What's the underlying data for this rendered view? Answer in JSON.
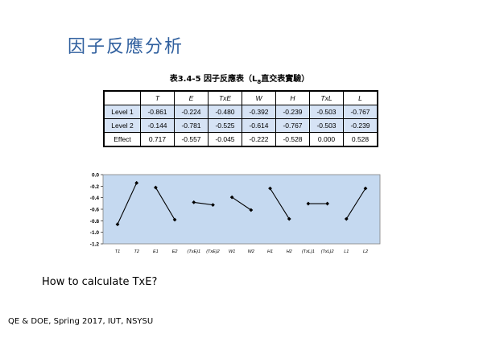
{
  "slide": {
    "title": "因子反應分析",
    "question": "How to calculate TxE?",
    "footer": "QE & DOE, Spring 2017, IUT, NSYSU"
  },
  "table": {
    "caption_pre": "表3.4-5  因子反應表（L",
    "caption_sub": "8",
    "caption_post": "直交表實驗）",
    "headers": [
      "T",
      "E",
      "TxE",
      "W",
      "H",
      "TxL",
      "L"
    ],
    "rows": [
      {
        "label": "Level 1",
        "values": [
          "-0.861",
          "-0.224",
          "-0.480",
          "-0.392",
          "-0.239",
          "-0.503",
          "-0.767"
        ]
      },
      {
        "label": "Level 2",
        "values": [
          "-0.144",
          "-0.781",
          "-0.525",
          "-0.614",
          "-0.767",
          "-0.503",
          "-0.239"
        ]
      },
      {
        "label": "Effect",
        "values": [
          "0.717",
          "-0.557",
          "-0.045",
          "-0.222",
          "-0.528",
          "0.000",
          "0.528"
        ]
      }
    ]
  },
  "chart_data": {
    "type": "line",
    "categories": [
      "T1",
      "T2",
      "E1",
      "E2",
      "(TxE)1",
      "(TxE)2",
      "W1",
      "W2",
      "H1",
      "H2",
      "(TxL)1",
      "(TxL)2",
      "L1",
      "L2"
    ],
    "series": [
      {
        "values": [
          -0.861,
          -0.144,
          null,
          null,
          null,
          null,
          null,
          null,
          null,
          null,
          null,
          null,
          null,
          null
        ]
      },
      {
        "values": [
          null,
          null,
          -0.224,
          -0.781,
          null,
          null,
          null,
          null,
          null,
          null,
          null,
          null,
          null,
          null
        ]
      },
      {
        "values": [
          null,
          null,
          null,
          null,
          -0.48,
          -0.525,
          null,
          null,
          null,
          null,
          null,
          null,
          null,
          null
        ]
      },
      {
        "values": [
          null,
          null,
          null,
          null,
          null,
          null,
          -0.392,
          -0.614,
          null,
          null,
          null,
          null,
          null,
          null
        ]
      },
      {
        "values": [
          null,
          null,
          null,
          null,
          null,
          null,
          null,
          null,
          -0.239,
          -0.767,
          null,
          null,
          null,
          null
        ]
      },
      {
        "values": [
          null,
          null,
          null,
          null,
          null,
          null,
          null,
          null,
          null,
          null,
          -0.503,
          -0.503,
          null,
          null
        ]
      },
      {
        "values": [
          null,
          null,
          null,
          null,
          null,
          null,
          null,
          null,
          null,
          null,
          null,
          null,
          -0.767,
          -0.239
        ]
      }
    ],
    "ylim": [
      -1.2,
      0.0
    ],
    "yticks": [
      "0.0",
      "-0.2",
      "-0.4",
      "-0.6",
      "-0.8",
      "-1.0",
      "-1.2"
    ],
    "grid": false,
    "plot_bg": "#c5d9f0",
    "line_color": "#000000"
  }
}
